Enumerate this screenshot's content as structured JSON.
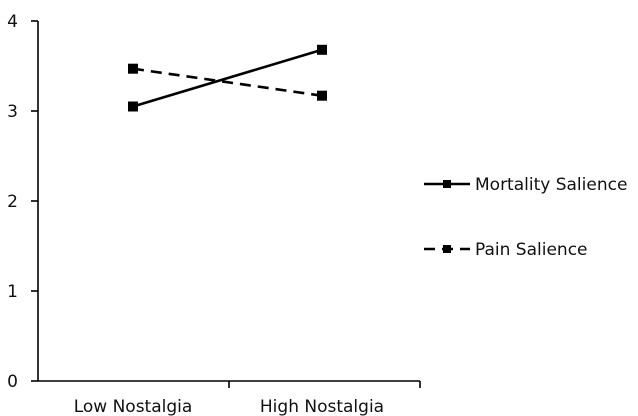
{
  "chart_data": {
    "type": "line",
    "title": "",
    "xlabel": "",
    "ylabel": "",
    "categories": [
      "Low Nostalgia",
      "High Nostalgia"
    ],
    "ylim": [
      0,
      4
    ],
    "yticks": [
      0,
      1,
      2,
      3,
      4
    ],
    "grid": false,
    "legend_position": "right",
    "series": [
      {
        "name": "Mortality Salience",
        "values": [
          3.05,
          3.68
        ],
        "line_style": "solid",
        "marker": "square",
        "color": "#000000"
      },
      {
        "name": "Pain Salience",
        "values": [
          3.47,
          3.17
        ],
        "line_style": "dashed",
        "marker": "square",
        "color": "#000000"
      }
    ]
  }
}
